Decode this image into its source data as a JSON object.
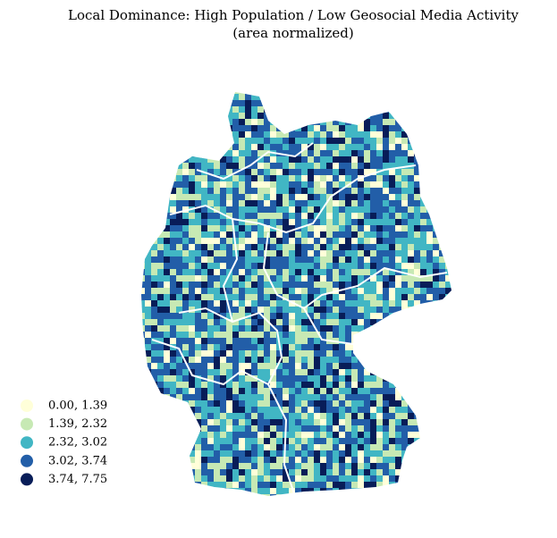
{
  "title": "Local Dominance: High Population / Low Geosocial Media Activity",
  "subtitle": "(area normalized)",
  "legend": [
    {
      "label": "0.00, 1.39",
      "color": "#ffffd9"
    },
    {
      "label": "1.39, 2.32",
      "color": "#c7e9b4"
    },
    {
      "label": "2.32, 3.02",
      "color": "#41b6c4"
    },
    {
      "label": "3.02, 3.74",
      "color": "#225ea8"
    },
    {
      "label": "3.74, 7.75",
      "color": "#081d58"
    }
  ]
}
